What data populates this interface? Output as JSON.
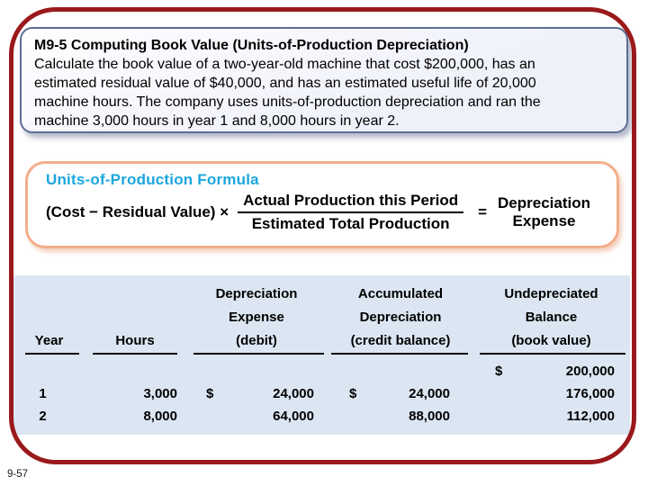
{
  "page_number": "9-57",
  "colors": {
    "frame_red": "#9a191c",
    "problem_border": "#5c6e96",
    "problem_fill": "#eff1fa",
    "formula_border": "#f3ae8b",
    "formula_title": "#1ba7dd",
    "table_background": "#dce6f2",
    "text": "#000000"
  },
  "problem": {
    "title": "M9-5 Computing Book Value (Units-of-Production Depreciation)",
    "body_lines": [
      "Calculate the book value of a two-year-old machine that cost $200,000, has an",
      "estimated residual value of $40,000, and has an estimated useful life of 20,000",
      "machine hours. The company uses units-of-production depreciation and ran the",
      "machine 3,000 hours in year 1 and 8,000 hours in year 2."
    ]
  },
  "formula": {
    "title": "Units-of-Production Formula",
    "lhs": "(Cost − Residual Value) ×",
    "numerator": "Actual Production this Period",
    "denominator": "Estimated Total Production",
    "equals": "=",
    "result_line1": "Depreciation",
    "result_line2": "Expense"
  },
  "table": {
    "headers": {
      "year": "Year",
      "hours": "Hours",
      "dep": [
        "Depreciation",
        "Expense",
        "(debit)"
      ],
      "acc": [
        "Accumulated",
        "Depreciation",
        "(credit balance)"
      ],
      "und": [
        "Undepreciated",
        "Balance",
        "(book value)"
      ]
    },
    "initial_row": {
      "dollar": "$",
      "book": "200,000"
    },
    "rows": [
      {
        "year": "1",
        "hours": "3,000",
        "dep_dollar": "$",
        "dep": "24,000",
        "acc_dollar": "$",
        "acc": "24,000",
        "book": "176,000"
      },
      {
        "year": "2",
        "hours": "8,000",
        "dep": "64,000",
        "acc": "88,000",
        "book": "112,000"
      }
    ]
  }
}
